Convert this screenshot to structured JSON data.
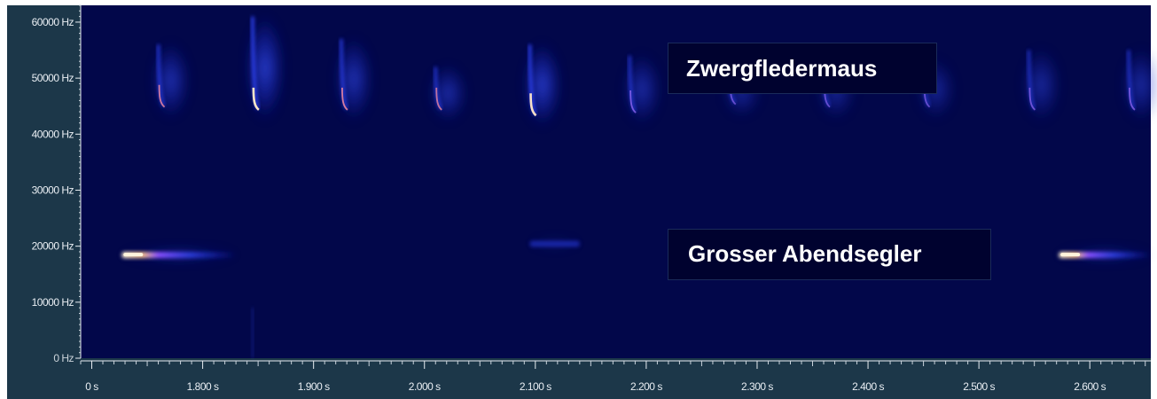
{
  "chart_data": {
    "type": "heatmap",
    "title": "",
    "xlabel": "",
    "ylabel": "",
    "xlim": [
      1.69,
      2.655
    ],
    "ylim": [
      0,
      63000
    ],
    "y_ticks": [
      {
        "value": 0,
        "label": "0 Hz"
      },
      {
        "value": 10000,
        "label": "10000 Hz"
      },
      {
        "value": 20000,
        "label": "20000 Hz"
      },
      {
        "value": 30000,
        "label": "30000 Hz"
      },
      {
        "value": 40000,
        "label": "40000 Hz"
      },
      {
        "value": 50000,
        "label": "50000 Hz"
      },
      {
        "value": 60000,
        "label": "60000 Hz"
      }
    ],
    "x_ticks": [
      {
        "value": 1.7,
        "label": "0 s"
      },
      {
        "value": 1.8,
        "label": "1.800 s"
      },
      {
        "value": 1.9,
        "label": "1.900 s"
      },
      {
        "value": 2.0,
        "label": "2.000 s"
      },
      {
        "value": 2.1,
        "label": "2.100 s"
      },
      {
        "value": 2.2,
        "label": "2.200 s"
      },
      {
        "value": 2.3,
        "label": "2.300 s"
      },
      {
        "value": 2.4,
        "label": "2.400 s"
      },
      {
        "value": 2.5,
        "label": "2.500 s"
      },
      {
        "value": 2.6,
        "label": "2.600 s"
      }
    ],
    "annotations": [
      {
        "text": "Zwergfledermaus"
      },
      {
        "text": "Grosser Abendsegler"
      }
    ],
    "calls_high": [
      {
        "t": 1.76,
        "f_top": 56000,
        "f_end": 45000,
        "intensity": 0.65
      },
      {
        "t": 1.845,
        "f_top": 61000,
        "f_end": 44500,
        "intensity": 1.0
      },
      {
        "t": 1.925,
        "f_top": 57000,
        "f_end": 44500,
        "intensity": 0.7
      },
      {
        "t": 2.01,
        "f_top": 52000,
        "f_end": 44500,
        "intensity": 0.55
      },
      {
        "t": 2.095,
        "f_top": 56000,
        "f_end": 43500,
        "intensity": 0.95
      },
      {
        "t": 2.185,
        "f_top": 54000,
        "f_end": 44000,
        "intensity": 0.5
      },
      {
        "t": 2.275,
        "f_top": 51000,
        "f_end": 45500,
        "intensity": 0.3
      },
      {
        "t": 2.36,
        "f_top": 52000,
        "f_end": 45000,
        "intensity": 0.3
      },
      {
        "t": 2.45,
        "f_top": 53000,
        "f_end": 45000,
        "intensity": 0.3
      },
      {
        "t": 2.545,
        "f_top": 55000,
        "f_end": 44500,
        "intensity": 0.4
      },
      {
        "t": 2.635,
        "f_top": 55000,
        "f_end": 44500,
        "intensity": 0.45
      }
    ],
    "calls_low": [
      {
        "t_start": 1.727,
        "t_end": 1.83,
        "freq": 18500,
        "intensity": 1.0
      },
      {
        "t_start": 2.095,
        "t_end": 2.14,
        "freq": 20500,
        "intensity": 0.3
      },
      {
        "t_start": 2.572,
        "t_end": 2.655,
        "freq": 18500,
        "intensity": 0.95
      }
    ],
    "colors": {
      "background": "#02074a",
      "frame": "#1c3749",
      "low_energy": "#1a2ad8",
      "mid_energy": "#6a3cff",
      "high_energy": "#ff9a7a",
      "peak": "#fff4dc",
      "axis_text": "#e9eef3"
    }
  }
}
